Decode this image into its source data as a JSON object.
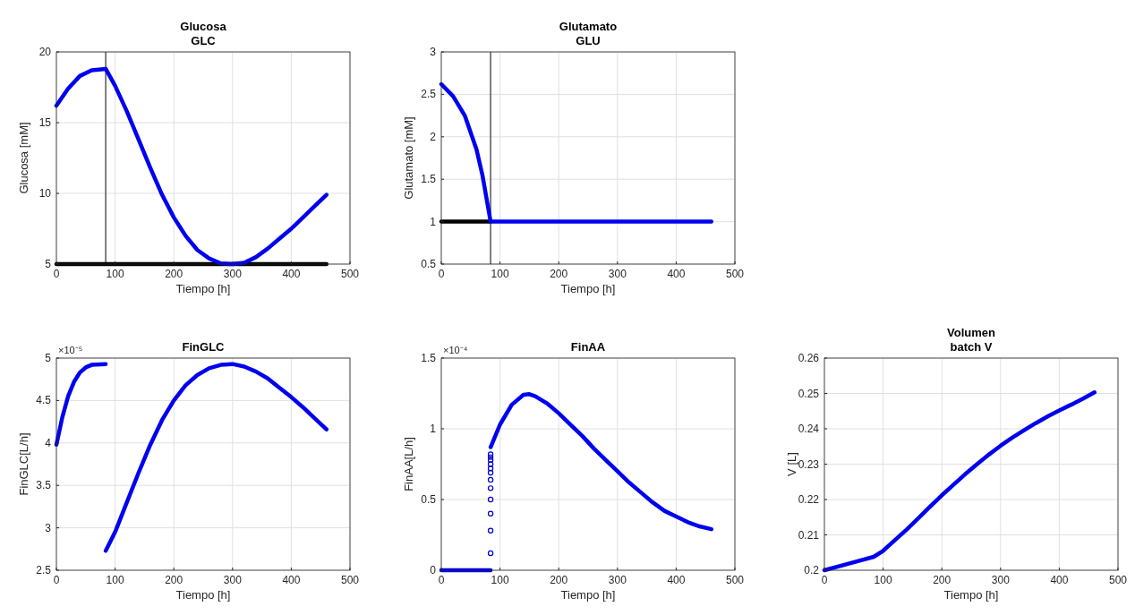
{
  "chart_data": [
    {
      "type": "line",
      "title": "Glucosa",
      "subtitle": "GLC",
      "xlabel": "Tiempo [h]",
      "ylabel": "Glucosa [mM]",
      "xlim": [
        0,
        500
      ],
      "xticks": [
        0,
        100,
        200,
        300,
        400,
        500
      ],
      "ylim": [
        5,
        20
      ],
      "yticks": [
        5,
        10,
        15,
        20
      ],
      "grid": true,
      "x": [
        0,
        20,
        40,
        60,
        84,
        100,
        120,
        140,
        160,
        180,
        200,
        220,
        240,
        260,
        280,
        300,
        320,
        340,
        360,
        380,
        400,
        420,
        440,
        460
      ],
      "series": [
        {
          "color": "#000000",
          "x": [
            0,
            460
          ],
          "values": [
            5,
            5
          ]
        },
        {
          "color": "#0000ee",
          "values": [
            16.2,
            17.4,
            18.3,
            18.7,
            18.8,
            17.6,
            15.8,
            13.8,
            11.8,
            9.9,
            8.3,
            7.0,
            6.0,
            5.4,
            5.05,
            5.0,
            5.1,
            5.5,
            6.1,
            6.8,
            7.5,
            8.3,
            9.1,
            9.9
          ]
        }
      ],
      "ref_lines": [
        {
          "axis": "x",
          "value": 84,
          "color": "#555555"
        }
      ]
    },
    {
      "type": "line",
      "title": "Glutamato",
      "subtitle": "GLU",
      "xlabel": "Tiempo [h]",
      "ylabel": "Glutamato [mM]",
      "xlim": [
        0,
        500
      ],
      "xticks": [
        0,
        100,
        200,
        300,
        400,
        500
      ],
      "ylim": [
        0.5,
        3
      ],
      "yticks": [
        0.5,
        1,
        1.5,
        2,
        2.5,
        3
      ],
      "grid": true,
      "x": [
        0,
        20,
        40,
        60,
        70,
        84,
        100,
        200,
        300,
        400,
        460
      ],
      "series": [
        {
          "color": "#000000",
          "x": [
            0,
            84
          ],
          "values": [
            1,
            1
          ]
        },
        {
          "color": "#0000ee",
          "values": [
            2.62,
            2.48,
            2.25,
            1.85,
            1.55,
            1.0,
            1.0,
            1.0,
            1.0,
            1.0,
            1.0
          ]
        }
      ],
      "ref_lines": [
        {
          "axis": "x",
          "value": 84,
          "color": "#555555"
        }
      ]
    },
    {
      "type": "line",
      "title": "FinGLC",
      "xlabel": "Tiempo [h]",
      "ylabel": "FinGLC[L/h]",
      "xlim": [
        0,
        500
      ],
      "xticks": [
        0,
        100,
        200,
        300,
        400,
        500
      ],
      "ylim": [
        2.5,
        5
      ],
      "yticks": [
        2.5,
        3,
        3.5,
        4,
        4.5,
        5
      ],
      "grid": true,
      "annotations": [
        "×10⁻⁵"
      ],
      "series": [
        {
          "color": "#0000ee",
          "x": [
            0,
            10,
            20,
            30,
            40,
            50,
            60,
            84
          ],
          "values": [
            3.98,
            4.3,
            4.55,
            4.72,
            4.83,
            4.89,
            4.92,
            4.93
          ]
        },
        {
          "color": "#0000ee",
          "x": [
            84,
            100,
            120,
            140,
            160,
            180,
            200,
            220,
            240,
            260,
            280,
            300,
            320,
            340,
            360,
            380,
            400,
            420,
            440,
            460
          ],
          "values": [
            2.73,
            2.95,
            3.3,
            3.65,
            3.98,
            4.27,
            4.5,
            4.68,
            4.8,
            4.88,
            4.92,
            4.93,
            4.9,
            4.84,
            4.76,
            4.65,
            4.54,
            4.42,
            4.29,
            4.16
          ]
        }
      ]
    },
    {
      "type": "line",
      "title": "FinAA",
      "xlabel": "Tiempo [h]",
      "ylabel": "FinAA[L/h]",
      "xlim": [
        0,
        500
      ],
      "xticks": [
        0,
        100,
        200,
        300,
        400,
        500
      ],
      "ylim": [
        0,
        1.5
      ],
      "yticks": [
        0,
        0.5,
        1,
        1.5
      ],
      "grid": true,
      "annotations": [
        "×10⁻⁴"
      ],
      "series": [
        {
          "color": "#0000ee",
          "x": [
            0,
            84
          ],
          "values": [
            0,
            0
          ]
        },
        {
          "type": "scatter",
          "marker": "circle",
          "color": "#0000cc",
          "x": [
            84,
            84,
            84,
            84,
            84,
            84,
            84,
            84,
            84,
            84,
            84,
            84
          ],
          "values": [
            0.12,
            0.28,
            0.4,
            0.5,
            0.58,
            0.64,
            0.69,
            0.72,
            0.75,
            0.78,
            0.8,
            0.82
          ]
        },
        {
          "color": "#0000ee",
          "x": [
            84,
            90,
            100,
            120,
            140,
            150,
            160,
            180,
            200,
            220,
            240,
            260,
            280,
            300,
            320,
            340,
            360,
            380,
            400,
            420,
            440,
            460
          ],
          "values": [
            0.87,
            0.93,
            1.03,
            1.17,
            1.24,
            1.245,
            1.23,
            1.18,
            1.11,
            1.03,
            0.95,
            0.86,
            0.78,
            0.7,
            0.62,
            0.55,
            0.48,
            0.42,
            0.38,
            0.34,
            0.31,
            0.29
          ]
        }
      ]
    },
    {
      "type": "line",
      "title": "Volumen",
      "subtitle": "batch V",
      "xlabel": "Tiempo [h]",
      "ylabel": "V [L]",
      "xlim": [
        0,
        500
      ],
      "xticks": [
        0,
        100,
        200,
        300,
        400,
        500
      ],
      "ylim": [
        0.2,
        0.26
      ],
      "yticks": [
        0.2,
        0.21,
        0.22,
        0.23,
        0.24,
        0.25,
        0.26
      ],
      "grid": true,
      "x": [
        0,
        40,
        84,
        100,
        120,
        140,
        160,
        180,
        200,
        220,
        240,
        260,
        280,
        300,
        320,
        340,
        360,
        380,
        400,
        420,
        440,
        460
      ],
      "series": [
        {
          "color": "#0000ee",
          "values": [
            0.2,
            0.2018,
            0.2038,
            0.2055,
            0.2085,
            0.2115,
            0.2147,
            0.218,
            0.2212,
            0.2242,
            0.2272,
            0.23,
            0.2327,
            0.2352,
            0.2375,
            0.2396,
            0.2416,
            0.2435,
            0.2452,
            0.2468,
            0.2485,
            0.2503
          ]
        }
      ]
    }
  ]
}
